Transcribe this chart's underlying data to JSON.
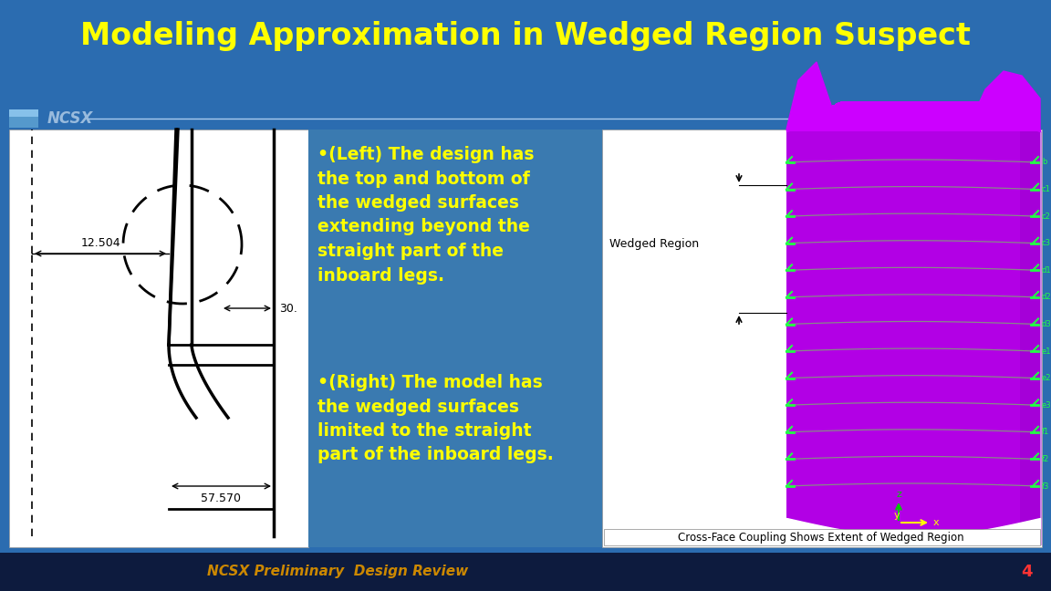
{
  "title": "Modeling Approximation in Wedged Region Suspect",
  "title_color": "#FFFF00",
  "title_fontsize": 24,
  "bg_color": "#2B6CB0",
  "footer_bg_color": "#0D1B3E",
  "ncsx_label": "NCSX",
  "ncsx_label_color": "#99BBDD",
  "ncsx_box_color": "#7BAFD4",
  "footer_text": "NCSX Preliminary  Design Review",
  "footer_text_color": "#CC8800",
  "footer_number": "4",
  "footer_number_color": "#FF3333",
  "bullet1": "•(Left) The design has\nthe top and bottom of\nthe wedged surfaces\nextending beyond the\nstraight part of the\ninboard legs.",
  "bullet2": "•(Right) The model has\nthe wedged surfaces\nlimited to the straight\npart of the inboard legs.",
  "bullet_color": "#FFFF00",
  "bullet_fontsize": 13.5,
  "text_bg_color": "#3A7AB0",
  "wedged_label": "Wedged Region",
  "line_color": "#AACCEE",
  "purple_main": "#CC00FF",
  "purple_dark": "#8800AA",
  "purple_light": "#EE66FF"
}
